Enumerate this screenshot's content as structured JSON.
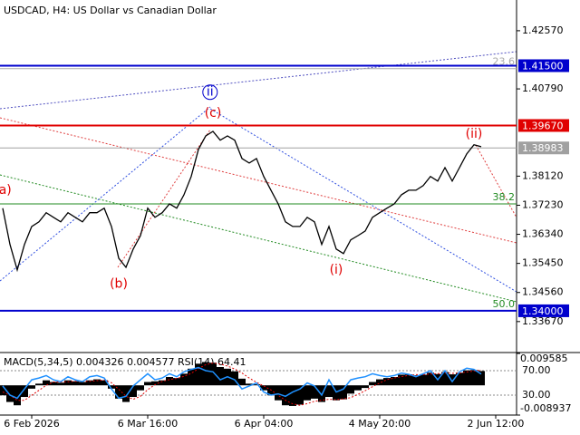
{
  "chart_data": [
    {
      "type": "line",
      "title": "USDCAD, H4:  US Dollar vs Canadian Dollar",
      "color": "#000000",
      "categories": [
        null,
        null,
        null,
        null,
        "6 Feb 2026",
        null,
        null,
        null,
        null,
        null,
        null,
        null,
        null,
        null,
        null,
        null,
        null,
        null,
        null,
        null,
        "6 Mar 16:00",
        null,
        null,
        null,
        null,
        null,
        null,
        null,
        null,
        null,
        null,
        null,
        null,
        null,
        null,
        null,
        "6 Apr 04:00",
        null,
        null,
        null,
        null,
        null,
        null,
        null,
        null,
        null,
        null,
        null,
        null,
        null,
        null,
        null,
        "4 May 20:00",
        null,
        null,
        null,
        null,
        null,
        null,
        null,
        null,
        null,
        null,
        null,
        null,
        null,
        null,
        null,
        "2 Jun 12:00",
        null
      ],
      "values": [
        1.3714,
        1.3603,
        1.3525,
        1.3603,
        1.3658,
        1.3672,
        1.37,
        1.3686,
        1.3672,
        1.37,
        1.3686,
        1.3672,
        1.37,
        1.37,
        1.3714,
        1.3658,
        1.3561,
        1.3533,
        1.3589,
        1.363,
        1.3714,
        1.3686,
        1.37,
        1.3727,
        1.3714,
        1.3755,
        1.3811,
        1.3894,
        1.3935,
        1.3949,
        1.3922,
        1.3935,
        1.3922,
        1.3866,
        1.3852,
        1.3866,
        1.3811,
        1.3769,
        1.3727,
        1.3672,
        1.3658,
        1.3658,
        1.3686,
        1.3672,
        1.3603,
        1.3658,
        1.3589,
        1.3575,
        1.3617,
        1.363,
        1.3644,
        1.3686,
        1.37,
        1.3714,
        1.3727,
        1.3755,
        1.3769,
        1.3769,
        1.3783,
        1.3811,
        1.3797,
        1.3838,
        1.3797,
        1.3838,
        1.388,
        1.3908,
        1.3902,
        null,
        null,
        null
      ],
      "ylim": [
        1.3275,
        1.4351
      ],
      "yticks": [
        {
          "value": 1.4257,
          "label": "1.42570"
        },
        {
          "value": 1.4079,
          "label": "1.40790"
        },
        {
          "value": 1.3812,
          "label": "1.38120"
        },
        {
          "value": 1.3723,
          "label": "1.37230"
        },
        {
          "value": 1.3634,
          "label": "1.36340"
        },
        {
          "value": 1.3545,
          "label": "1.35450"
        },
        {
          "value": 1.3456,
          "label": "1.34560"
        },
        {
          "value": 1.3367,
          "label": "1.33670"
        }
      ],
      "levels": [
        {
          "value": 1.415,
          "label": "1.41500",
          "color": "#0000cd"
        },
        {
          "value": 1.3967,
          "label": "1.39670",
          "color": "#e00000"
        },
        {
          "value": 1.38983,
          "label": "1.38983",
          "color": "#a0a0a0"
        },
        {
          "value": 1.34,
          "label": "1.34000",
          "color": "#0000cd"
        }
      ],
      "fib_levels": [
        {
          "value": 1.4141,
          "label": "23.6",
          "color": "#aaaaaa"
        },
        {
          "value": 1.3727,
          "label": "38.2",
          "color": "#228b22"
        },
        {
          "value": 1.34,
          "label": "50.0",
          "color": "#228b22"
        }
      ],
      "annotations": [
        {
          "text": "ii",
          "x": 28.6,
          "y": 1.4069,
          "color": "#0000cd",
          "circle": true
        },
        {
          "text": "(c)",
          "x": 29,
          "y": 1.4005,
          "color": "#e00000"
        },
        {
          "text": "(b)",
          "x": 16,
          "y": 1.3481,
          "color": "#e00000"
        },
        {
          "text": "(i)",
          "x": 46,
          "y": 1.3525,
          "color": "#e00000"
        },
        {
          "text": "(ii)",
          "x": 65,
          "y": 1.3941,
          "color": "#e00000"
        },
        {
          "text": "(a)",
          "x": 0,
          "y": 1.3769,
          "color": "#e00000"
        }
      ]
    },
    {
      "type": "bar",
      "title": "MACD(5,34,5) 0.004326 0.004577 RSI(14) 64.41",
      "ylim": [
        -0.008937,
        0.009585
      ],
      "yticks": [
        0.009585,
        -0.008937
      ],
      "y2lim": [
        -2.6,
        98.1
      ],
      "y2ticks": [
        {
          "value": 70,
          "label": "70.00"
        },
        {
          "value": 30,
          "label": "30.00"
        }
      ],
      "series": [
        {
          "color": "#000000",
          "values": [
            -0.003,
            -0.005,
            -0.006,
            -0.0035,
            -0.001,
            0.0005,
            0.0015,
            0.001,
            0.0008,
            0.0015,
            0.0012,
            0.001,
            0.0015,
            0.0018,
            0.0015,
            -0.001,
            -0.004,
            -0.005,
            -0.0035,
            -0.0015,
            0.001,
            0.0012,
            0.0015,
            0.0025,
            0.0022,
            0.0035,
            0.005,
            0.0065,
            0.007,
            0.0068,
            0.0055,
            0.005,
            0.0042,
            0.002,
            0.0005,
            0.0003,
            -0.0015,
            -0.003,
            -0.0045,
            -0.006,
            -0.0062,
            -0.0058,
            -0.0045,
            -0.004,
            -0.005,
            -0.0035,
            -0.0045,
            -0.0042,
            -0.0025,
            -0.0015,
            -0.0008,
            0.001,
            0.0018,
            0.0022,
            0.0025,
            0.0032,
            0.0033,
            0.003,
            0.0032,
            0.0038,
            0.0034,
            0.004,
            0.0033,
            0.0038,
            0.0045,
            0.0046,
            0.0043,
            null,
            null,
            null
          ]
        },
        {
          "color": "#e00000",
          "line": true,
          "values": [
            -0.002,
            -0.003,
            -0.0045,
            -0.0045,
            -0.003,
            -0.0015,
            0,
            0.001,
            0.001,
            0.0011,
            0.0012,
            0.0012,
            0.0012,
            0.0014,
            0.0016,
            0.0008,
            -0.0012,
            -0.0033,
            -0.0042,
            -0.0033,
            -0.0013,
            0.0002,
            0.0012,
            0.0017,
            0.0021,
            0.0027,
            0.0036,
            0.005,
            0.0062,
            0.0067,
            0.0064,
            0.0058,
            0.0049,
            0.0037,
            0.0022,
            0.0009,
            -0.0002,
            -0.0014,
            -0.003,
            -0.0045,
            -0.0056,
            -0.006,
            -0.0055,
            -0.0048,
            -0.0045,
            -0.0042,
            -0.0043,
            -0.0041,
            -0.0037,
            -0.0027,
            -0.0016,
            -0.0004,
            0.0007,
            0.0017,
            0.0022,
            0.0026,
            0.003,
            0.0032,
            0.0032,
            0.0034,
            0.0035,
            0.0037,
            0.0036,
            0.0037,
            0.004,
            0.0043,
            0.0046,
            null,
            null,
            null
          ]
        },
        {
          "color": "#1e90ff",
          "line": true,
          "axis": "y2",
          "values": [
            45,
            30,
            25,
            40,
            55,
            58,
            62,
            55,
            52,
            60,
            55,
            52,
            60,
            62,
            58,
            40,
            25,
            28,
            45,
            55,
            65,
            55,
            58,
            65,
            60,
            68,
            72,
            75,
            70,
            68,
            55,
            60,
            55,
            40,
            45,
            50,
            35,
            30,
            32,
            28,
            35,
            40,
            50,
            45,
            30,
            55,
            35,
            40,
            55,
            58,
            60,
            65,
            62,
            60,
            62,
            66,
            64,
            60,
            65,
            70,
            55,
            70,
            52,
            68,
            74,
            72,
            64.41,
            null,
            null,
            null
          ]
        }
      ]
    }
  ]
}
